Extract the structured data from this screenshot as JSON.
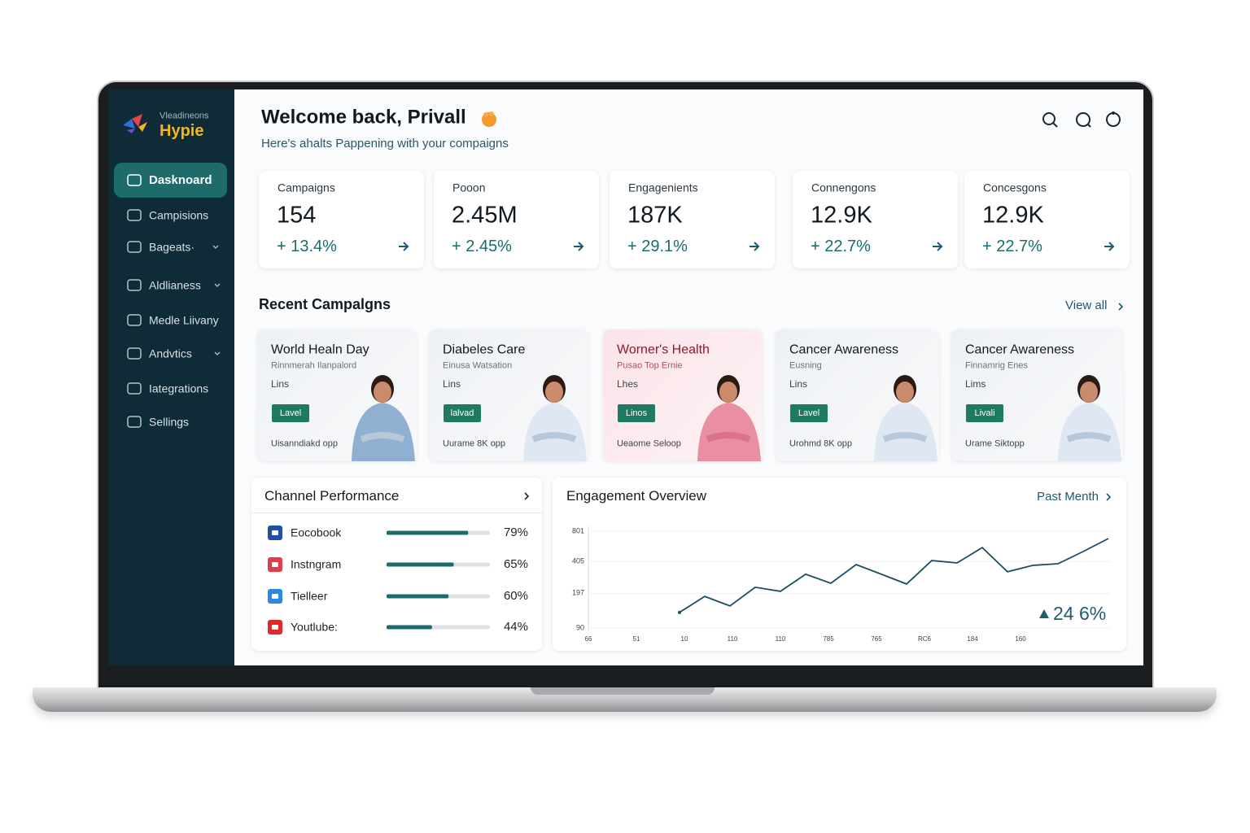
{
  "sidebar": {
    "brand_tagline": "Vleadineons",
    "brand": "Hypie",
    "nav": [
      {
        "label": "Dasknoard"
      },
      {
        "label": "Campisions"
      },
      {
        "label": "Bageats·"
      },
      {
        "label": "Aldlianess"
      },
      {
        "label": "Medle Liivany"
      },
      {
        "label": "Andvtics"
      },
      {
        "label": "Iategrations"
      },
      {
        "label": "Sellings"
      }
    ]
  },
  "header": {
    "title": "Welcome back, Privall",
    "subtitle": "Here's ahalts Pappening with your compaigns"
  },
  "stats": [
    {
      "label": "Campaigns",
      "value": "154",
      "change": "+ 13.4%"
    },
    {
      "label": "Pooon",
      "value": "2.45M",
      "change": "+ 2.45%"
    },
    {
      "label": "Engagenients",
      "value": "187K",
      "change": "+ 29.1%"
    },
    {
      "label": "Connengons",
      "value": "12.9K",
      "change": "+ 22.7%"
    },
    {
      "label": "Concesgons",
      "value": "12.9K",
      "change": "+ 22.7%"
    }
  ],
  "recent_campaigns": {
    "title": "Recent Campalgns",
    "view_all": "View all",
    "cards": [
      {
        "title": "World Healn Day",
        "subtitle": "Rinnmerah Ilanpalord",
        "line": "Lins",
        "badge": "Lavel",
        "footer": "Uisanndiakd opp"
      },
      {
        "title": "Diabeles Care",
        "subtitle": "Einusa Watsation",
        "line": "Lins",
        "badge": "lalvad",
        "footer": "Uurame 8K opp"
      },
      {
        "title": "Worner's Health",
        "subtitle": "Pusao Top Ernie",
        "line": "Lhes",
        "badge": "Linos",
        "footer": "Ueaome Seloop"
      },
      {
        "title": "Cancer Awareness",
        "subtitle": "Eusning",
        "line": "Lins",
        "badge": "Lavel",
        "footer": "Urohmd 8K opp"
      },
      {
        "title": "Cancer Awareness",
        "subtitle": "Finnamrig Enes",
        "line": "Lims",
        "badge": "Livali",
        "footer": "Urame Siktopp"
      }
    ]
  },
  "channel_performance": {
    "title": "Channel Performance",
    "rows": [
      {
        "name": "Eocobook",
        "value": 79,
        "label": "79%"
      },
      {
        "name": "Instngram",
        "value": 65,
        "label": "65%"
      },
      {
        "name": "Tielleer",
        "value": 60,
        "label": "60%"
      },
      {
        "name": "Youtlube:",
        "value": 44,
        "label": "44%"
      }
    ]
  },
  "engagement_overview": {
    "title": "Engagement Overview",
    "period": "Past Menth",
    "highlight": "24 6%",
    "chart": {
      "type": "line",
      "log": true,
      "grid": true,
      "color": "#1d4d63",
      "ylim": [
        90,
        801
      ],
      "yticks": [
        90,
        197,
        405,
        801
      ],
      "xtick_labels": [
        "66",
        "51",
        "10",
        "110",
        "110",
        "785",
        "765",
        "RC6",
        "184",
        "160"
      ],
      "values": [
        128,
        184,
        148,
        226,
        206,
        303,
        247,
        377,
        303,
        243,
        413,
        391,
        554,
        320,
        370,
        384,
        506,
        679
      ]
    }
  }
}
